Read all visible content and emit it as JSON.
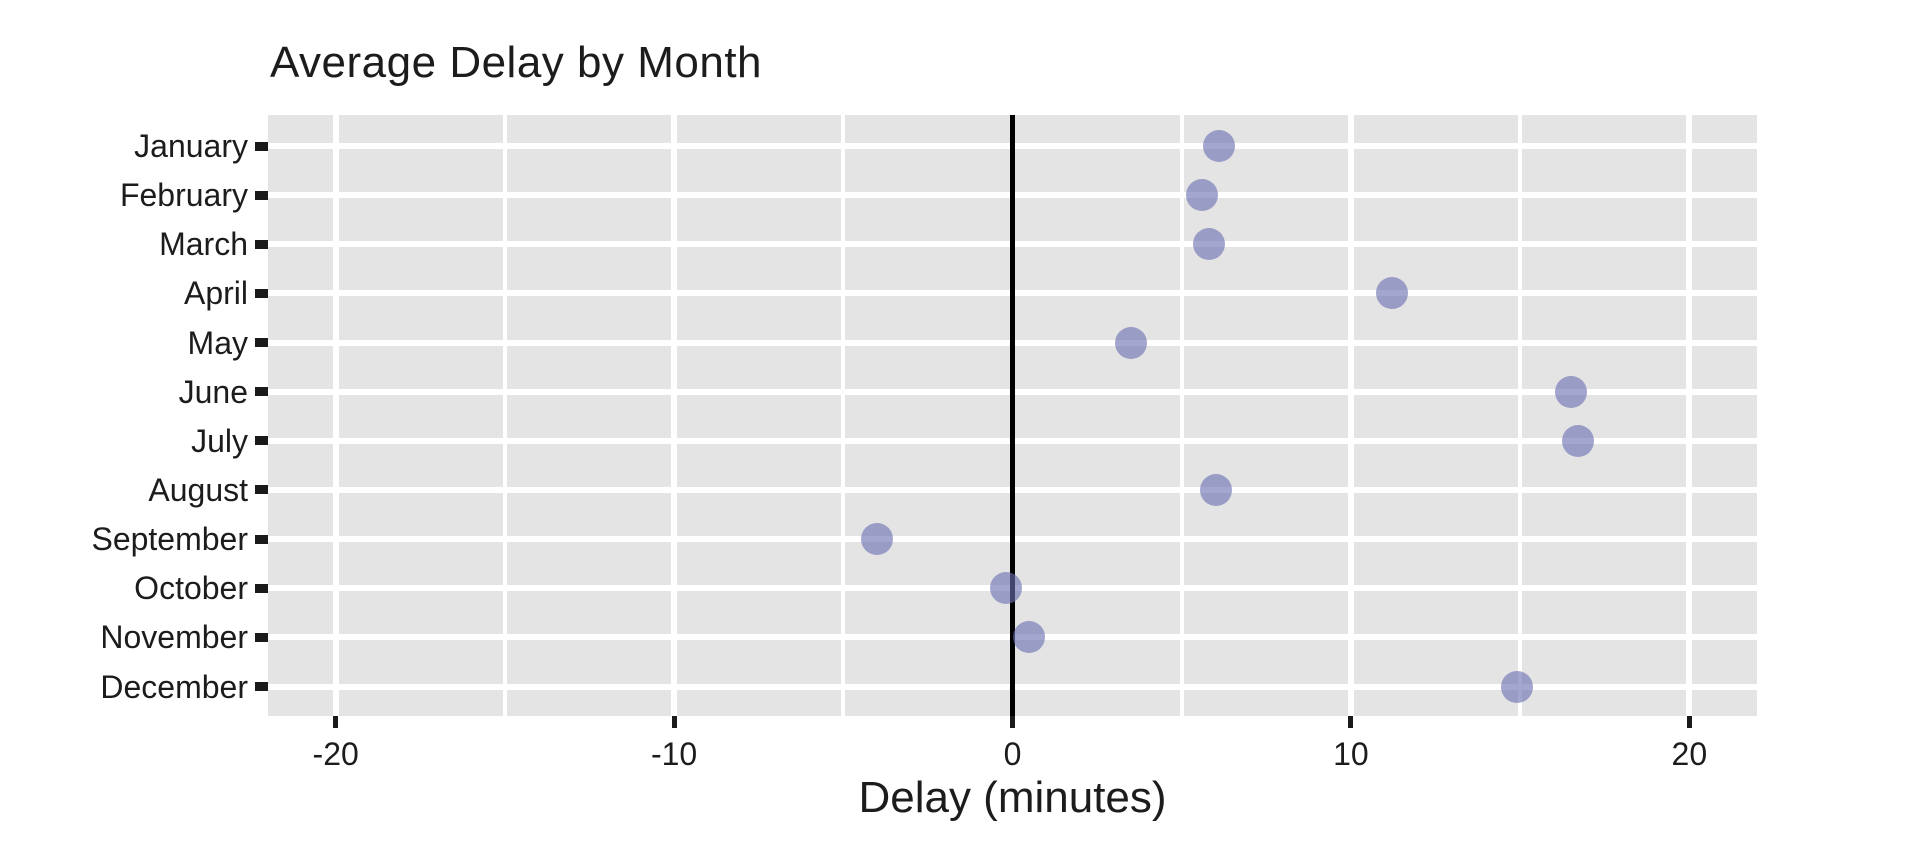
{
  "chart_data": {
    "type": "scatter",
    "title": "Average Delay by Month",
    "xlabel": "Delay (minutes)",
    "ylabel": "",
    "categories": [
      "January",
      "February",
      "March",
      "April",
      "May",
      "June",
      "July",
      "August",
      "September",
      "October",
      "November",
      "December"
    ],
    "values": [
      6.1,
      5.6,
      5.8,
      11.2,
      3.5,
      16.5,
      16.7,
      6.0,
      -4.0,
      -0.2,
      0.5,
      14.9
    ],
    "xlim": [
      -22,
      22
    ],
    "x_ticks": [
      -20,
      -10,
      0,
      10,
      20
    ],
    "x_tick_labels": [
      "-20",
      "-10",
      "0",
      "10",
      "20"
    ],
    "x_minor_gridlines": [
      -15,
      -5,
      5,
      15
    ],
    "grid": "on",
    "legend_position": "none",
    "zero_reference_line": 0,
    "colors": {
      "panel_background": "#e4e4e4",
      "gridline": "#ffffff",
      "point": "rgba(106,111,178,0.62)",
      "zero_line": "#000000",
      "tick_mark": "#1a1a1a",
      "text": "#1c1c1c"
    }
  }
}
